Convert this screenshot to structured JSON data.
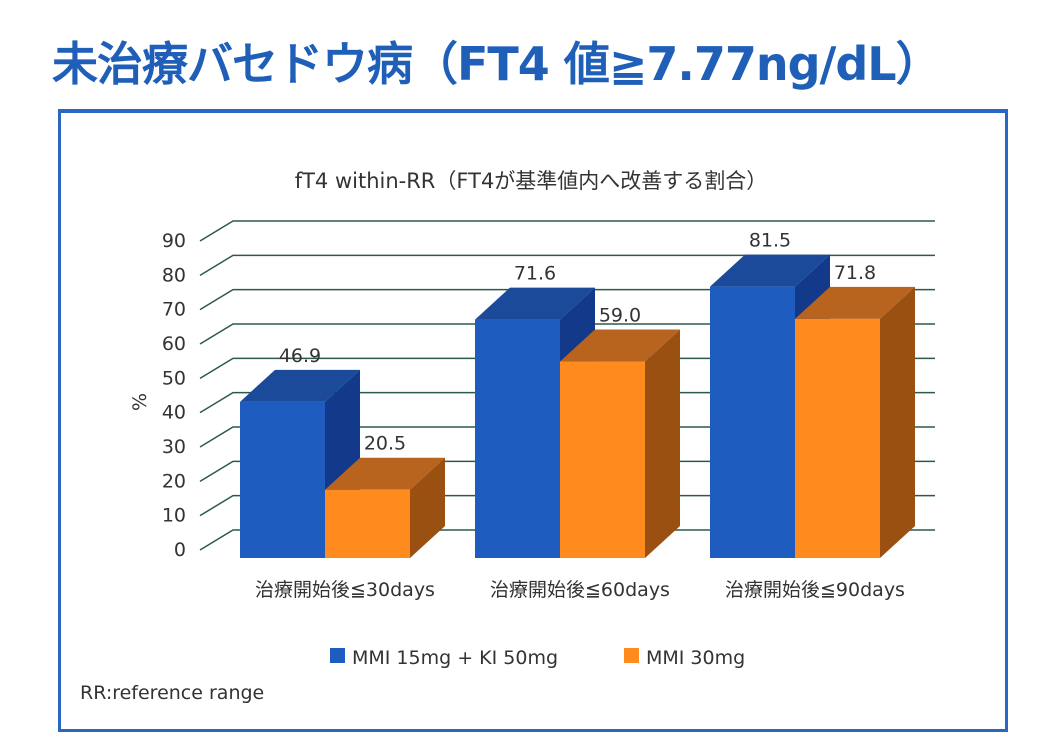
{
  "page_title": "未治療バセドウ病（FT4 値≧7.77ng/dL）",
  "footnote": "RR:reference range",
  "colors": {
    "accent": "#1f5fb8",
    "series1": "#1f5cc0",
    "series2": "#ff8a1e"
  },
  "chart_data": {
    "type": "bar",
    "style": "3d",
    "title": "fT4 within-RR（FT4が基準値内へ改善する割合）",
    "xlabel": "",
    "ylabel": "%",
    "ylim": [
      0,
      90
    ],
    "yticks": [
      0,
      10,
      20,
      30,
      40,
      50,
      60,
      70,
      80,
      90
    ],
    "grid": true,
    "legend_position": "bottom",
    "categories": [
      "治療開始後≦30days",
      "治療開始後≦60days",
      "治療開始後≦90days"
    ],
    "series": [
      {
        "name": "MMI 15mg + KI 50mg",
        "values": [
          46.9,
          71.6,
          81.5
        ],
        "labels": [
          "46.9",
          "71.6",
          "81.5"
        ]
      },
      {
        "name": "MMI 30mg",
        "values": [
          20.5,
          59.0,
          71.8
        ],
        "labels": [
          "20.5",
          "59.0",
          "71.8"
        ]
      }
    ]
  }
}
